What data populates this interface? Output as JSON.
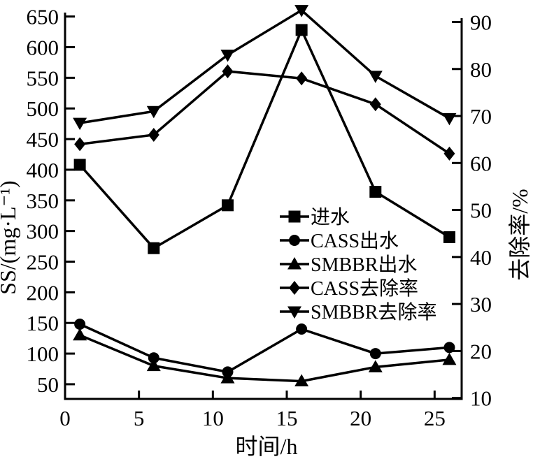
{
  "figure": {
    "background": "#ffffff",
    "ink_color": "#000000"
  },
  "chart_data": {
    "type": "line",
    "title": "",
    "xlabel": "时间/h",
    "ylabel_left": "SS/(mg·L⁻¹)",
    "ylabel_right": "去除率/%",
    "grid": false,
    "legend_position": "inside-right-middle",
    "x": [
      1,
      6,
      11,
      16,
      21,
      26
    ],
    "x_ticks": [
      0,
      5,
      10,
      15,
      20,
      25
    ],
    "xlim": [
      0,
      26.83
    ],
    "yticks_left": [
      50,
      100,
      150,
      200,
      250,
      300,
      350,
      400,
      450,
      500,
      550,
      600,
      650
    ],
    "ylim_left": [
      26,
      661
    ],
    "yticks_right": [
      10,
      20,
      30,
      40,
      50,
      60,
      70,
      80,
      90
    ],
    "ylim_right": [
      9.8,
      92.6
    ],
    "series": [
      {
        "id": "influent",
        "name": "进水",
        "axis": "left",
        "marker": "square",
        "values": [
          408,
          272,
          342,
          628,
          364,
          290
        ]
      },
      {
        "id": "cass-effluent",
        "name": "CASS出水",
        "axis": "left",
        "marker": "circle",
        "values": [
          148,
          93,
          70,
          140,
          100,
          110
        ]
      },
      {
        "id": "smbbr-effluent",
        "name": "SMBBR出水",
        "axis": "left",
        "marker": "triangle-up",
        "values": [
          130,
          80,
          60,
          55,
          78,
          90
        ]
      },
      {
        "id": "cass-removal-rate",
        "name": "CASS去除率",
        "axis": "right",
        "marker": "diamond",
        "values": [
          64,
          66,
          79.5,
          78,
          72.5,
          62
        ]
      },
      {
        "id": "smbbr-removal-rate",
        "name": "SMBBR去除率",
        "axis": "right",
        "marker": "triangle-down",
        "values": [
          68.5,
          71,
          83,
          92.5,
          78.5,
          69.5
        ]
      }
    ]
  }
}
